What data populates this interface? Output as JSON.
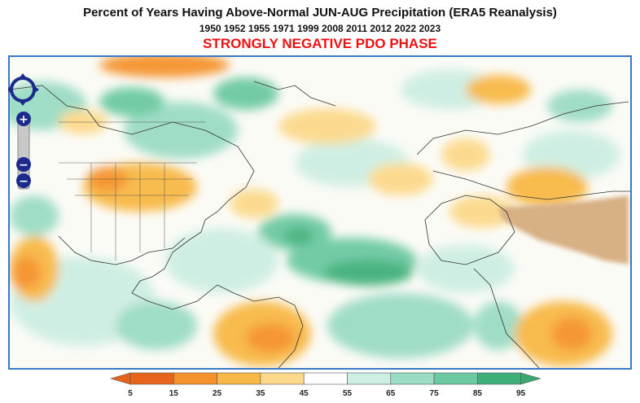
{
  "header": {
    "title": "Percent of Years Having Above-Normal JUN-AUG Precipitation (ERA5 Reanalysis)",
    "years": "1950 1952 1955 1971 1999 2008 2011 2012 2022 2023",
    "phase": "STRONGLY NEGATIVE PDO PHASE",
    "phase_color": "#ee1111"
  },
  "map": {
    "region": "North Atlantic, North America, Europe, Africa",
    "nav_controls": {
      "pan_icon": "pan-arrows-icon",
      "zoom_in_label": "+",
      "zoom_out_label": "−",
      "zoom_out_label_2": "−"
    }
  },
  "colorbar": {
    "ticks": [
      "5",
      "15",
      "25",
      "35",
      "45",
      "55",
      "65",
      "75",
      "85",
      "95"
    ],
    "colors": [
      "#e8641c",
      "#f5922c",
      "#f8b845",
      "#fcd98a",
      "#ffffff",
      "#cdeee2",
      "#9bdcc4",
      "#6cc9a1",
      "#3fb07a"
    ],
    "low_color": "#e3631a",
    "high_color": "#3aa86e"
  }
}
